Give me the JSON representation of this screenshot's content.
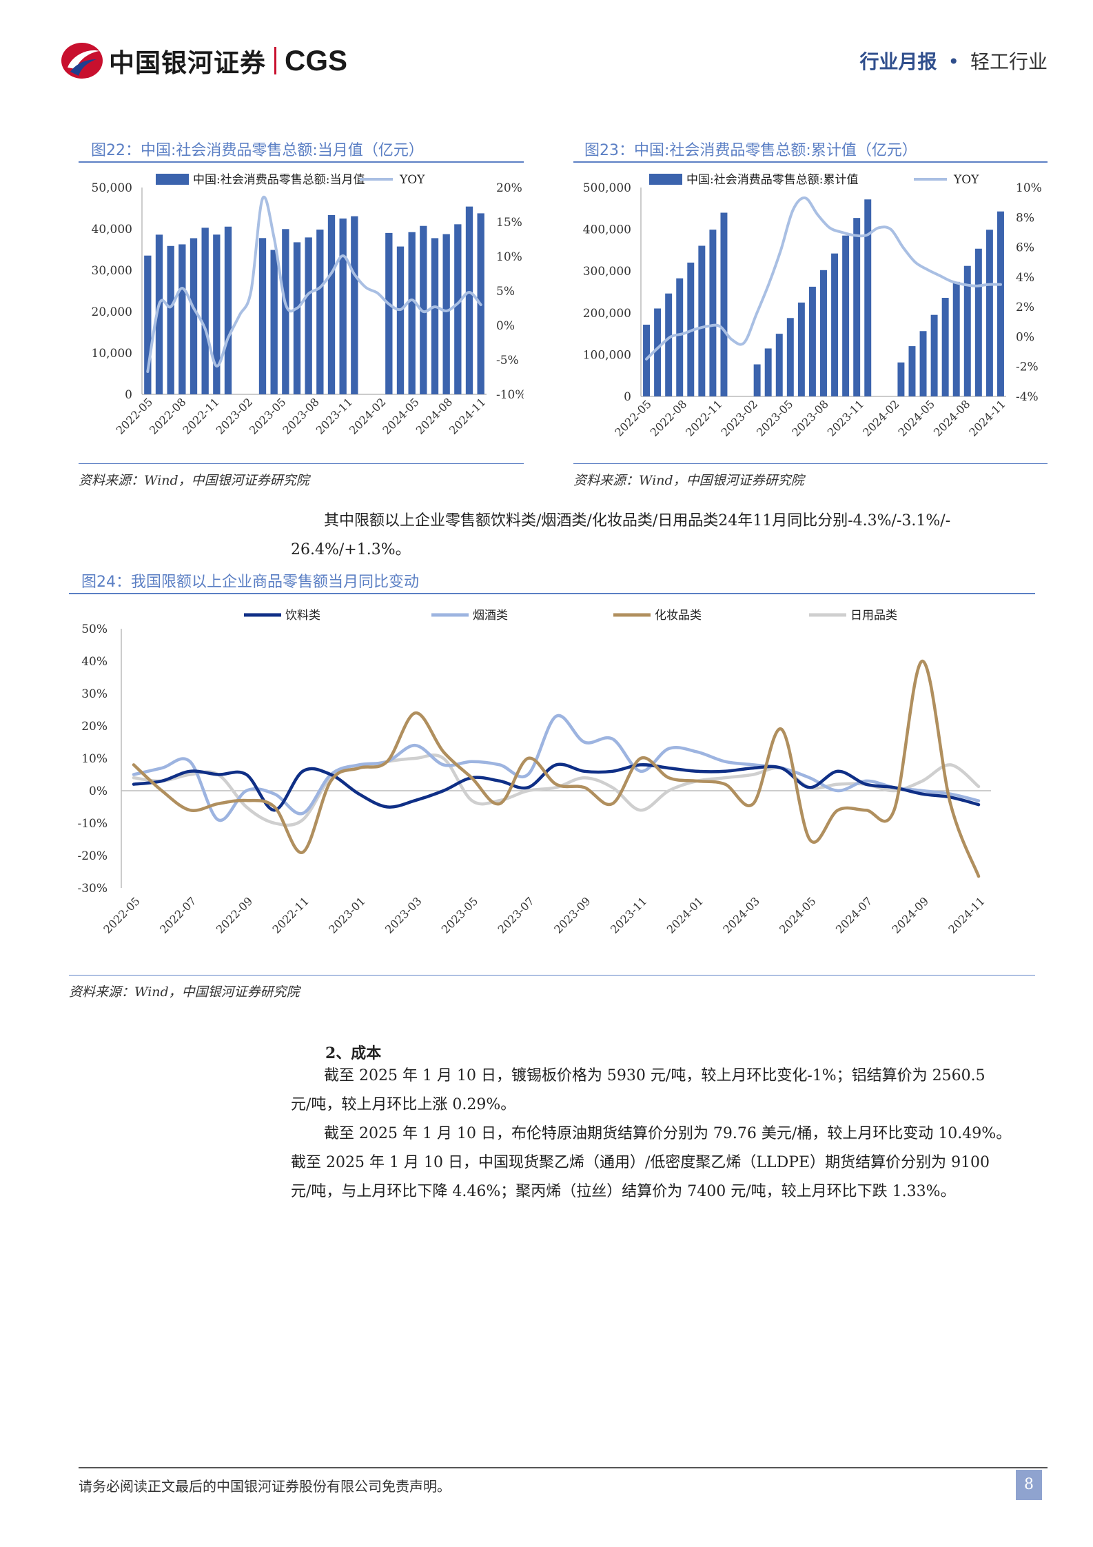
{
  "header": {
    "logo_cn": "中国银河证券",
    "logo_en": "CGS",
    "report_type": "行业月报",
    "dot": "•",
    "industry": "轻工行业"
  },
  "fig22": {
    "title": "图22：中国:社会消费品零售总额:当月值（亿元）",
    "source": "资料来源：Wind，中国银河证券研究院"
  },
  "fig23": {
    "title": "图23：中国:社会消费品零售总额:累计值（亿元）",
    "source": "资料来源：Wind，中国银河证券研究院"
  },
  "body": {
    "para1_line1": "其中限额以上企业零售额饮料类/烟酒类/化妆品类/日用品类24年11月同比分别-4.3%/-3.1%/-",
    "para1_line2": "26.4%/+1.3%。"
  },
  "fig24": {
    "title": "图24：我国限额以上企业商品零售额当月同比变动",
    "source": "资料来源：Wind，中国银河证券研究院"
  },
  "section2": {
    "title": "2、成本",
    "p1_line1": "截至 2025 年 1 月 10 日，镀锡板价格为 5930 元/吨，较上月环比变化-1%；铝结算价为 2560.5",
    "p1_line2": "元/吨，较上月环比上涨 0.29%。",
    "p2_line1": "截至 2025 年 1 月 10 日，布伦特原油期货结算价分别为 79.76 美元/桶，较上月环比变动 10.49%。",
    "p2_line2": "截至 2025 年 1 月 10 日，中国现货聚乙烯（通用）/低密度聚乙烯（LLDPE）期货结算价分别为 9100",
    "p2_line3": "元/吨，与上月环比下降 4.46%；聚丙烯（拉丝）结算价为 7400 元/吨，较上月环比下跌 1.33%。"
  },
  "footer": {
    "disclaimer": "请务必阅读正文最后的中国银河证券股份有限公司免责声明。",
    "page": "8"
  },
  "colors": {
    "bar": "#3b63ad",
    "yoy": "#a9bfe3",
    "beverage": "#0f2f86",
    "tobacco": "#9db4e0",
    "cosmetics": "#b08f5e",
    "daily": "#cfcfcf",
    "accent": "#5b7fc4"
  },
  "chart_data": [
    {
      "type": "bar",
      "title": "",
      "series": [
        {
          "name": "中国:社会消费品零售总额:当月值",
          "axis": "left",
          "values": [
            33547,
            38601,
            35870,
            36258,
            37745,
            40271,
            38615,
            40542,
            null,
            null,
            37779,
            34910,
            39951,
            36761,
            37933,
            39826,
            43333,
            42505,
            43055,
            null,
            null,
            39020,
            35738,
            39211,
            40716,
            37757,
            38726,
            41112,
            45396,
            43763
          ]
        },
        {
          "name": "YOY",
          "axis": "right",
          "type": "line",
          "values": [
            -6.7,
            3.1,
            2.7,
            5.4,
            2.5,
            -0.5,
            -5.9,
            -1.8,
            1.5,
            5.0,
            18.4,
            12.7,
            3.1,
            2.5,
            4.6,
            5.5,
            7.6,
            10.1,
            7.4,
            5.5,
            4.7,
            3.1,
            2.3,
            3.7,
            2.0,
            2.7,
            2.1,
            3.2,
            4.8,
            3.0
          ]
        }
      ],
      "x_tick_labels": [
        "2022-05",
        "2022-08",
        "2022-11",
        "2023-02",
        "2023-05",
        "2023-08",
        "2023-11",
        "2024-02",
        "2024-05",
        "2024-08",
        "2024-11"
      ],
      "y_left_ticks": [
        "0",
        "10,000",
        "20,000",
        "30,000",
        "40,000",
        "50,000"
      ],
      "y_right_ticks": [
        "-10%",
        "-5%",
        "0%",
        "5%",
        "10%",
        "15%",
        "20%"
      ],
      "ylim_left": [
        0,
        50000
      ],
      "ylim_right": [
        -10,
        20
      ],
      "legend": "top"
    },
    {
      "type": "bar",
      "title": "",
      "series": [
        {
          "name": "中国:社会消费品零售总额:累计值",
          "axis": "left",
          "values": [
            171689,
            210432,
            246330,
            282596,
            320305,
            360575,
            399190,
            439733,
            null,
            null,
            76686,
            114761,
            149966,
            187636,
            224669,
            262524,
            302281,
            342107,
            385050,
            427141,
            471495,
            null,
            null,
            81307,
            120327,
            156326,
            195210,
            235969,
            274126,
            312386,
            353564,
            398938,
            442723
          ]
        },
        {
          "name": "YOY",
          "axis": "right",
          "type": "line",
          "values": [
            -1.5,
            -0.7,
            0.0,
            0.2,
            0.5,
            0.7,
            0.7,
            -0.2,
            -0.4,
            1.5,
            3.5,
            5.8,
            8.5,
            9.3,
            8.2,
            7.3,
            7.0,
            6.8,
            6.8,
            7.3,
            7.2,
            6.0,
            5.0,
            4.5,
            4.1,
            3.7,
            3.5,
            3.4,
            3.5,
            3.5
          ]
        }
      ],
      "x_tick_labels": [
        "2022-05",
        "2022-08",
        "2022-11",
        "2023-02",
        "2023-05",
        "2023-08",
        "2023-11",
        "2024-02",
        "2024-05",
        "2024-08",
        "2024-11"
      ],
      "y_left_ticks": [
        "0",
        "100,000",
        "200,000",
        "300,000",
        "400,000",
        "500,000"
      ],
      "y_right_ticks": [
        "-4%",
        "-2%",
        "0%",
        "2%",
        "4%",
        "6%",
        "8%",
        "10%"
      ],
      "ylim_left": [
        0,
        500000
      ],
      "ylim_right": [
        -4,
        10
      ],
      "legend": "top"
    },
    {
      "type": "line",
      "title": "",
      "x": [
        "2022-05",
        "2022-06",
        "2022-07",
        "2022-08",
        "2022-09",
        "2022-10",
        "2022-11",
        "2022-12",
        "2023-01",
        "2023-02",
        "2023-03",
        "2023-04",
        "2023-05",
        "2023-06",
        "2023-07",
        "2023-08",
        "2023-09",
        "2023-10",
        "2023-11",
        "2023-12",
        "2024-01",
        "2024-02",
        "2024-03",
        "2024-04",
        "2024-05",
        "2024-06",
        "2024-07",
        "2024-08",
        "2024-09",
        "2024-10",
        "2024-11"
      ],
      "x_tick_labels": [
        "2022-05",
        "2022-07",
        "2022-09",
        "2022-11",
        "2023-01",
        "2023-03",
        "2023-05",
        "2023-07",
        "2023-09",
        "2023-11",
        "2024-01",
        "2024-03",
        "2024-05",
        "2024-07",
        "2024-09",
        "2024-11"
      ],
      "series": [
        {
          "name": "饮料类",
          "values": [
            2,
            3,
            6,
            5,
            5,
            -6,
            6,
            5,
            -1,
            -5,
            -3,
            0,
            4,
            3,
            1,
            8,
            6,
            6,
            8,
            7,
            6,
            6,
            7,
            7,
            1,
            6,
            2,
            1,
            -1,
            -2,
            -4.3
          ]
        },
        {
          "name": "烟酒类",
          "values": [
            5,
            7,
            9,
            -9,
            0,
            -1,
            -7,
            5,
            8,
            9,
            14,
            8,
            9,
            8,
            5,
            23,
            15,
            16,
            6,
            13,
            12,
            9,
            8,
            7,
            4,
            0,
            3,
            1,
            0,
            -1,
            -3.1
          ]
        },
        {
          "name": "化妆品类",
          "values": [
            8,
            0,
            -6,
            -4,
            -3,
            -5,
            -19,
            3,
            7,
            9,
            24,
            12,
            4,
            -4,
            10,
            2,
            1,
            -4,
            10,
            4,
            3,
            2,
            -4,
            19,
            -15,
            -6,
            -6,
            -6,
            40,
            -4,
            -26.4
          ]
        },
        {
          "name": "日用品类",
          "values": [
            4,
            3,
            5,
            5,
            -5,
            -10,
            -9,
            4,
            7,
            9,
            10,
            10,
            -3,
            -3,
            0,
            1,
            4,
            1,
            -6,
            0,
            3,
            4,
            5,
            7,
            1,
            2,
            2,
            0,
            3,
            8,
            1.3
          ]
        }
      ],
      "y_ticks": [
        "-30%",
        "-20%",
        "-10%",
        "0%",
        "10%",
        "20%",
        "30%",
        "40%",
        "50%"
      ],
      "ylim": [
        -30,
        50
      ],
      "legend": "top"
    }
  ]
}
